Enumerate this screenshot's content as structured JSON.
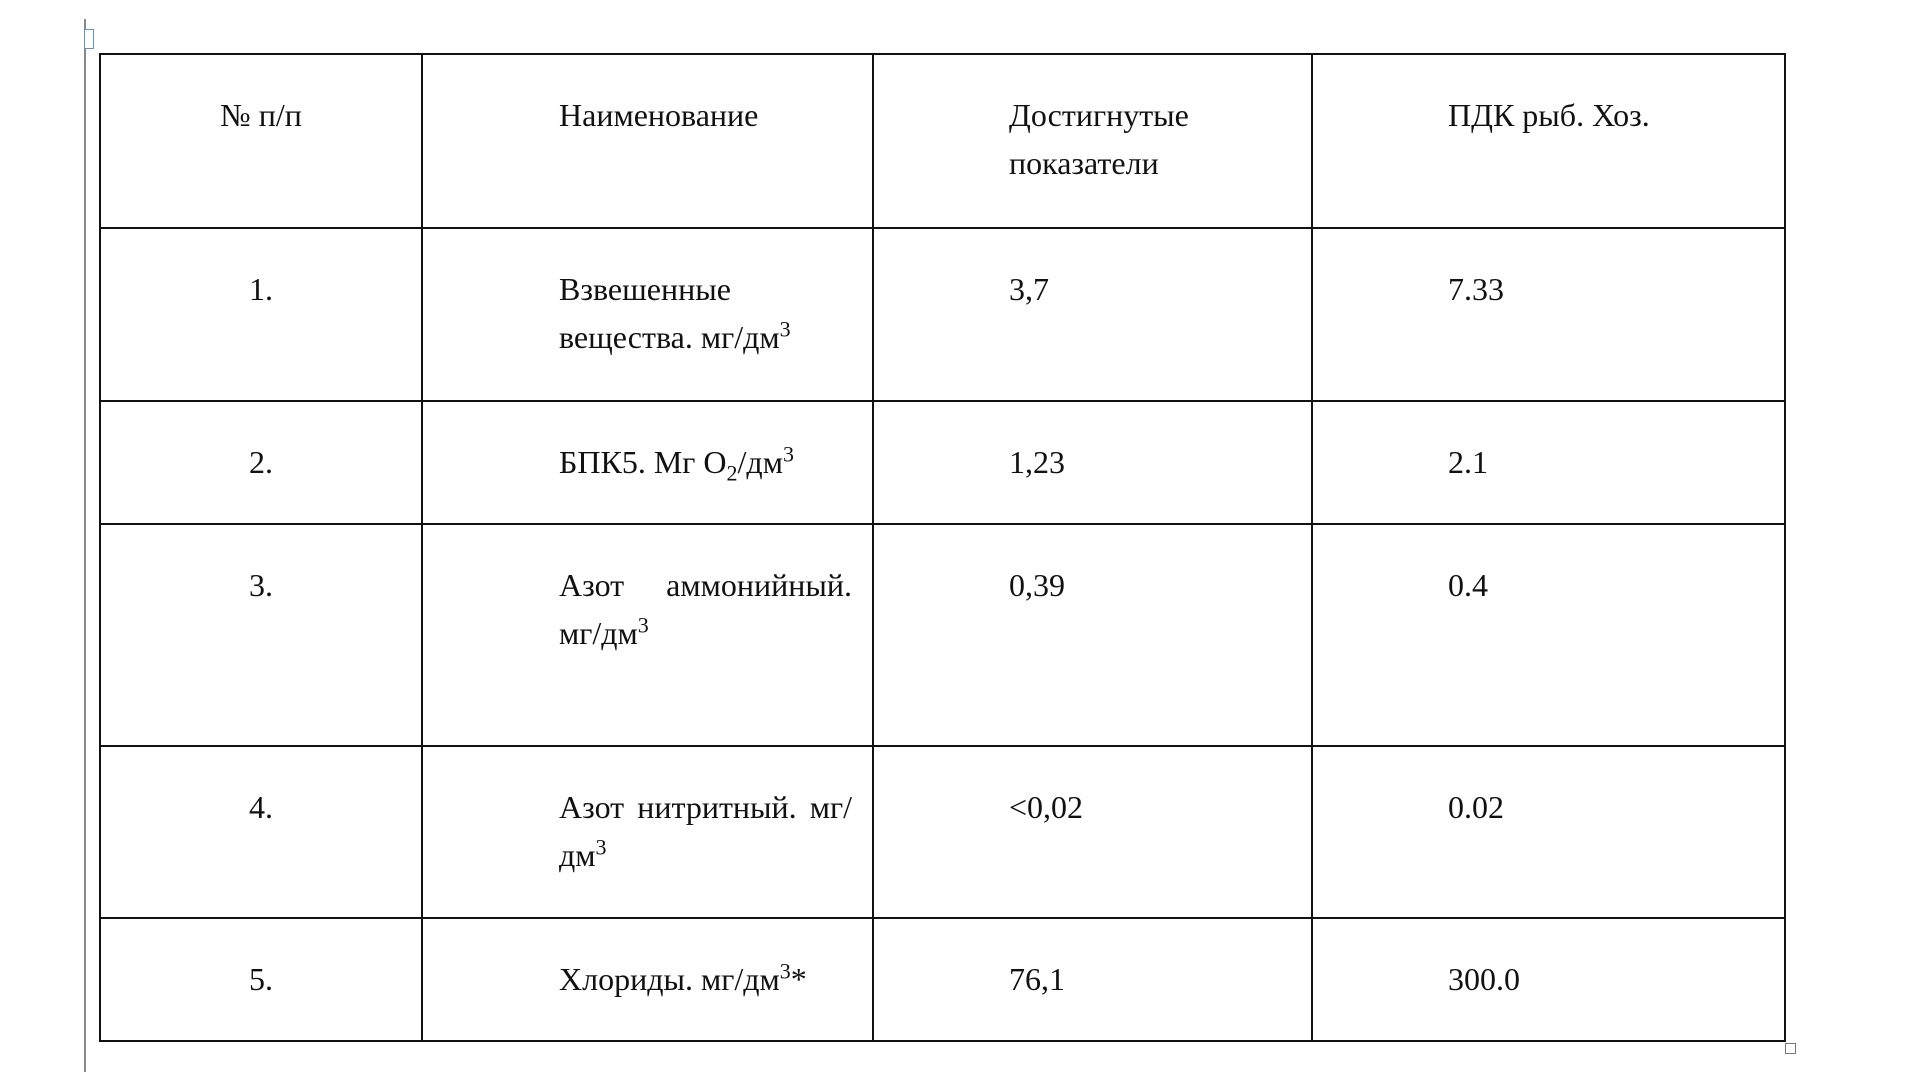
{
  "table": {
    "header": [
      "№ п/п",
      "Наименование",
      "Достигнутые показатели",
      "ПДК рыб. Хоз."
    ],
    "rows": [
      [
        "1.",
        [
          {
            "text": "Взвешенные вещества. мг/дм"
          },
          {
            "sup": "3"
          }
        ],
        "3,7",
        "7.33"
      ],
      [
        "2.",
        [
          {
            "text": "БПК5. Мг O"
          },
          {
            "sub": "2"
          },
          {
            "text": "/дм"
          },
          {
            "sup": "3"
          }
        ],
        "1,23",
        "2.1"
      ],
      [
        "3.",
        [
          {
            "text": "Азот аммонийный. мг/дм"
          },
          {
            "sup": "3"
          }
        ],
        "0,39",
        "0.4"
      ],
      [
        "4.",
        [
          {
            "text": "Азот нитритный. мг/дм"
          },
          {
            "sup": "3"
          }
        ],
        "<0,02",
        "0.02"
      ],
      [
        "5.",
        [
          {
            "text": "Хлориды. мг/дм"
          },
          {
            "sup": "3"
          },
          {
            "text": "*"
          }
        ],
        "76,1",
        "300.0"
      ]
    ]
  }
}
